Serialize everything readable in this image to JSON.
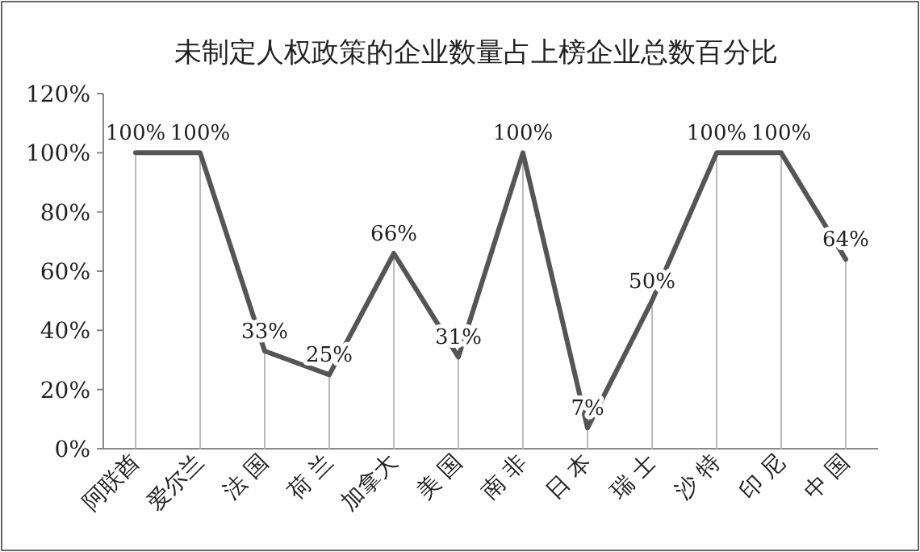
{
  "chart_data": {
    "type": "line",
    "title": "未制定人权政策的企业数量占上榜企业总数百分比",
    "categories": [
      "阿联酋",
      "爱尔兰",
      "法 国",
      "荷 兰",
      "加拿大",
      "美 国",
      "南 非",
      "日 本",
      "瑞 士",
      "沙 特",
      "印 尼",
      "中 国"
    ],
    "series": [
      {
        "color": "#555555",
        "values": [
          100,
          100,
          33,
          25,
          66,
          31,
          100,
          7,
          50,
          100,
          100,
          64
        ]
      }
    ],
    "value_labels": [
      "100%",
      "100%",
      "33%",
      "25%",
      "66%",
      "31%",
      "100%",
      "7%",
      "50%",
      "100%",
      "100%",
      "64%"
    ],
    "ylim": [
      0,
      120
    ],
    "yticks": [
      {
        "value": 0,
        "label": "0%"
      },
      {
        "value": 20,
        "label": "20%"
      },
      {
        "value": 40,
        "label": "40%"
      },
      {
        "value": 60,
        "label": "60%"
      },
      {
        "value": 80,
        "label": "80%"
      },
      {
        "value": 100,
        "label": "100%"
      },
      {
        "value": 120,
        "label": "120%"
      }
    ],
    "grid": "x",
    "marker": "none",
    "line_style": "solid"
  }
}
